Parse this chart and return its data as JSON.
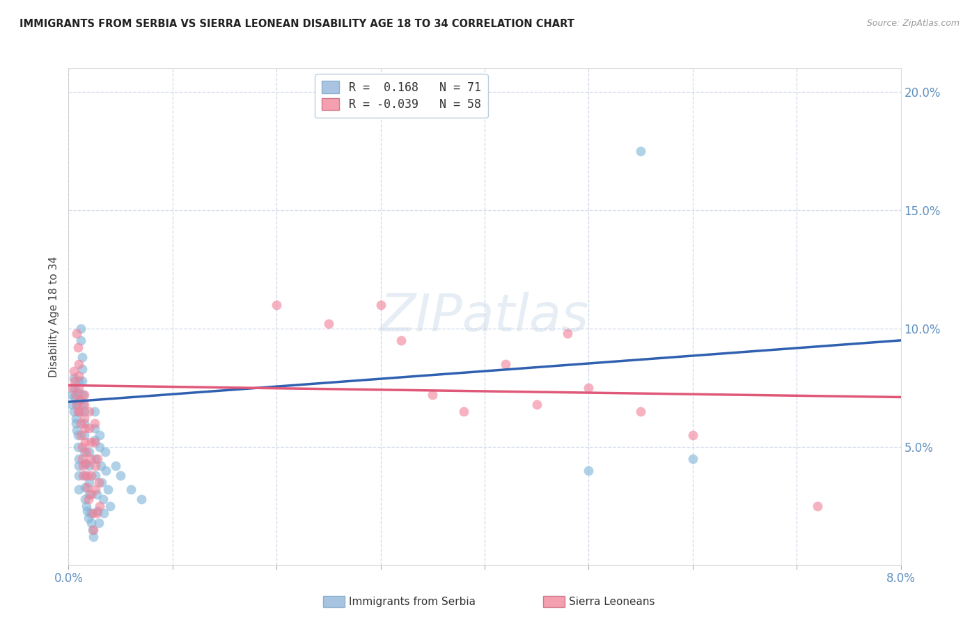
{
  "title": "IMMIGRANTS FROM SERBIA VS SIERRA LEONEAN DISABILITY AGE 18 TO 34 CORRELATION CHART",
  "source": "Source: ZipAtlas.com",
  "ylabel": "Disability Age 18 to 34",
  "x_min": 0.0,
  "x_max": 0.08,
  "y_min": 0.0,
  "y_max": 0.21,
  "serbia_color": "#7eb3d8",
  "sierra_color": "#f08098",
  "line_serbia_color": "#3060b0",
  "line_sierra_color": "#e05878",
  "serbia_R": 0.168,
  "sierra_R": -0.039,
  "serbia_N": 71,
  "sierra_N": 58,
  "serbia_scatter": [
    [
      0.0003,
      0.072
    ],
    [
      0.0003,
      0.068
    ],
    [
      0.0005,
      0.079
    ],
    [
      0.0005,
      0.065
    ],
    [
      0.0006,
      0.075
    ],
    [
      0.0006,
      0.071
    ],
    [
      0.0007,
      0.062
    ],
    [
      0.0007,
      0.06
    ],
    [
      0.0008,
      0.068
    ],
    [
      0.0008,
      0.057
    ],
    [
      0.0009,
      0.055
    ],
    [
      0.0009,
      0.05
    ],
    [
      0.001,
      0.078
    ],
    [
      0.001,
      0.073
    ],
    [
      0.001,
      0.069
    ],
    [
      0.001,
      0.065
    ],
    [
      0.001,
      0.045
    ],
    [
      0.001,
      0.042
    ],
    [
      0.001,
      0.038
    ],
    [
      0.001,
      0.032
    ],
    [
      0.0012,
      0.1
    ],
    [
      0.0012,
      0.095
    ],
    [
      0.0013,
      0.088
    ],
    [
      0.0013,
      0.083
    ],
    [
      0.0013,
      0.078
    ],
    [
      0.0014,
      0.072
    ],
    [
      0.0014,
      0.068
    ],
    [
      0.0015,
      0.065
    ],
    [
      0.0015,
      0.06
    ],
    [
      0.0015,
      0.055
    ],
    [
      0.0015,
      0.048
    ],
    [
      0.0016,
      0.043
    ],
    [
      0.0016,
      0.038
    ],
    [
      0.0016,
      0.033
    ],
    [
      0.0016,
      0.028
    ],
    [
      0.0017,
      0.025
    ],
    [
      0.0018,
      0.023
    ],
    [
      0.0019,
      0.02
    ],
    [
      0.002,
      0.048
    ],
    [
      0.002,
      0.042
    ],
    [
      0.002,
      0.035
    ],
    [
      0.002,
      0.03
    ],
    [
      0.0021,
      0.022
    ],
    [
      0.0022,
      0.018
    ],
    [
      0.0023,
      0.015
    ],
    [
      0.0024,
      0.012
    ],
    [
      0.0025,
      0.065
    ],
    [
      0.0025,
      0.058
    ],
    [
      0.0025,
      0.053
    ],
    [
      0.0026,
      0.045
    ],
    [
      0.0026,
      0.038
    ],
    [
      0.0027,
      0.03
    ],
    [
      0.0028,
      0.023
    ],
    [
      0.0029,
      0.018
    ],
    [
      0.003,
      0.055
    ],
    [
      0.003,
      0.05
    ],
    [
      0.0031,
      0.042
    ],
    [
      0.0032,
      0.035
    ],
    [
      0.0033,
      0.028
    ],
    [
      0.0034,
      0.022
    ],
    [
      0.0035,
      0.048
    ],
    [
      0.0036,
      0.04
    ],
    [
      0.0038,
      0.032
    ],
    [
      0.004,
      0.025
    ],
    [
      0.0045,
      0.042
    ],
    [
      0.005,
      0.038
    ],
    [
      0.006,
      0.032
    ],
    [
      0.007,
      0.028
    ],
    [
      0.055,
      0.175
    ],
    [
      0.05,
      0.04
    ],
    [
      0.06,
      0.045
    ]
  ],
  "sierra_scatter": [
    [
      0.0003,
      0.075
    ],
    [
      0.0005,
      0.082
    ],
    [
      0.0006,
      0.078
    ],
    [
      0.0007,
      0.072
    ],
    [
      0.0008,
      0.068
    ],
    [
      0.0008,
      0.098
    ],
    [
      0.0009,
      0.065
    ],
    [
      0.0009,
      0.092
    ],
    [
      0.001,
      0.085
    ],
    [
      0.001,
      0.08
    ],
    [
      0.001,
      0.075
    ],
    [
      0.0011,
      0.07
    ],
    [
      0.0011,
      0.065
    ],
    [
      0.0012,
      0.06
    ],
    [
      0.0012,
      0.055
    ],
    [
      0.0013,
      0.05
    ],
    [
      0.0013,
      0.045
    ],
    [
      0.0014,
      0.042
    ],
    [
      0.0014,
      0.038
    ],
    [
      0.0015,
      0.072
    ],
    [
      0.0015,
      0.068
    ],
    [
      0.0015,
      0.062
    ],
    [
      0.0016,
      0.058
    ],
    [
      0.0016,
      0.052
    ],
    [
      0.0017,
      0.048
    ],
    [
      0.0017,
      0.043
    ],
    [
      0.0018,
      0.038
    ],
    [
      0.0018,
      0.033
    ],
    [
      0.0019,
      0.028
    ],
    [
      0.002,
      0.065
    ],
    [
      0.002,
      0.058
    ],
    [
      0.0021,
      0.052
    ],
    [
      0.0021,
      0.045
    ],
    [
      0.0022,
      0.038
    ],
    [
      0.0022,
      0.03
    ],
    [
      0.0023,
      0.022
    ],
    [
      0.0024,
      0.015
    ],
    [
      0.0025,
      0.06
    ],
    [
      0.0025,
      0.052
    ],
    [
      0.0026,
      0.042
    ],
    [
      0.0026,
      0.032
    ],
    [
      0.0027,
      0.022
    ],
    [
      0.0028,
      0.045
    ],
    [
      0.0029,
      0.035
    ],
    [
      0.003,
      0.025
    ],
    [
      0.02,
      0.11
    ],
    [
      0.025,
      0.102
    ],
    [
      0.03,
      0.11
    ],
    [
      0.032,
      0.095
    ],
    [
      0.035,
      0.072
    ],
    [
      0.038,
      0.065
    ],
    [
      0.042,
      0.085
    ],
    [
      0.045,
      0.068
    ],
    [
      0.048,
      0.098
    ],
    [
      0.05,
      0.075
    ],
    [
      0.055,
      0.065
    ],
    [
      0.06,
      0.055
    ],
    [
      0.072,
      0.025
    ]
  ],
  "watermark": "ZIPatlas",
  "background_color": "#ffffff",
  "grid_color": "#d0d8e8",
  "axis_color": "#6090c0",
  "legend_label_serbia": "R =  0.168   N = 71",
  "legend_label_sierra": "R = -0.039   N = 58",
  "legend_color_serbia": "#a8c4e0",
  "legend_color_sierra": "#f4a0b0"
}
